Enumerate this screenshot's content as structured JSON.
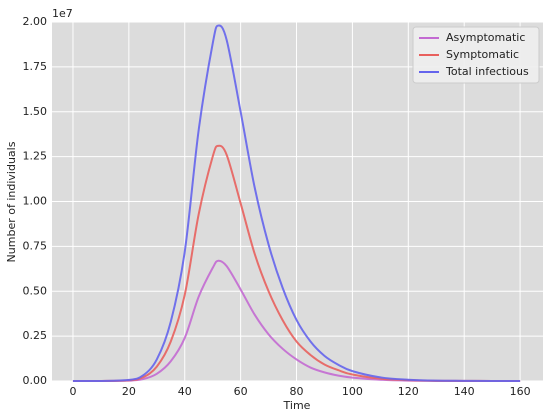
{
  "chart_data": {
    "type": "line",
    "x_label": "Time",
    "y_label": "Number of individuals",
    "y_offset_label": "1e7",
    "x": [
      0,
      10,
      20,
      25,
      30,
      35,
      40,
      45,
      50,
      52,
      55,
      60,
      65,
      70,
      75,
      80,
      85,
      90,
      95,
      100,
      110,
      120,
      130,
      140,
      150,
      160
    ],
    "series": [
      {
        "name": "Asymptomatic",
        "color": "#c36ad2",
        "values": [
          0,
          0.0001,
          0.002,
          0.01,
          0.04,
          0.11,
          0.24,
          0.47,
          0.63,
          0.67,
          0.64,
          0.51,
          0.37,
          0.26,
          0.18,
          0.12,
          0.075,
          0.048,
          0.03,
          0.019,
          0.007,
          0.002,
          0.001,
          0,
          0,
          0
        ]
      },
      {
        "name": "Symptomatic",
        "color": "#e8605d",
        "values": [
          0,
          0.0002,
          0.004,
          0.02,
          0.08,
          0.22,
          0.48,
          0.93,
          1.25,
          1.31,
          1.26,
          0.99,
          0.71,
          0.5,
          0.34,
          0.22,
          0.145,
          0.092,
          0.06,
          0.036,
          0.013,
          0.005,
          0.001,
          0.001,
          0,
          0
        ]
      },
      {
        "name": "Total infectious",
        "color": "#6464ec",
        "values": [
          0,
          0.0003,
          0.006,
          0.03,
          0.12,
          0.33,
          0.72,
          1.4,
          1.88,
          1.98,
          1.9,
          1.5,
          1.08,
          0.76,
          0.52,
          0.34,
          0.22,
          0.14,
          0.09,
          0.055,
          0.02,
          0.007,
          0.002,
          0.001,
          0,
          0
        ]
      }
    ],
    "xlim": [
      -7.5,
      168.2
    ],
    "ylim": [
      0,
      2.0
    ],
    "xticks": [
      0,
      20,
      40,
      60,
      80,
      100,
      120,
      140,
      160
    ],
    "yticks": [
      {
        "value": 0,
        "label": "0.00"
      },
      {
        "value": 0.25,
        "label": "0.25"
      },
      {
        "value": 0.5,
        "label": "0.50"
      },
      {
        "value": 0.75,
        "label": "0.75"
      },
      {
        "value": 1.0,
        "label": "1.00"
      },
      {
        "value": 1.25,
        "label": "1.25"
      },
      {
        "value": 1.5,
        "label": "1.50"
      },
      {
        "value": 1.75,
        "label": "1.75"
      },
      {
        "value": 2.0,
        "label": "2.00"
      }
    ],
    "grid": true,
    "legend": "upper right"
  }
}
